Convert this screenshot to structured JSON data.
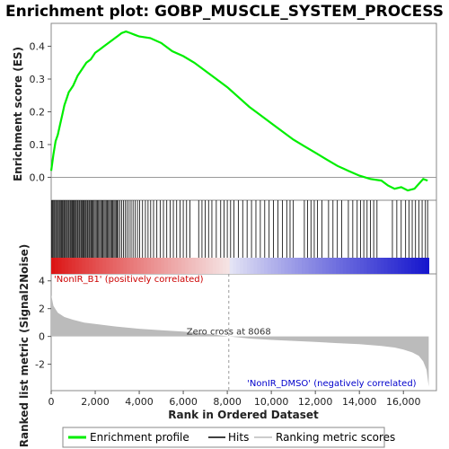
{
  "chart_data": {
    "type": "line",
    "title": "Enrichment plot: GOBP_MUSCLE_SYSTEM_PROCESS",
    "xlabel": "Rank in Ordered Dataset",
    "xlim": [
      0,
      17500
    ],
    "x_ticks": [
      "0",
      "2,000",
      "4,000",
      "6,000",
      "8,000",
      "10,000",
      "12,000",
      "14,000",
      "16,000"
    ],
    "x_tick_values": [
      0,
      2000,
      4000,
      6000,
      8000,
      10000,
      12000,
      14000,
      16000
    ],
    "top_panel": {
      "ylabel": "Enrichment score (ES)",
      "ylim": [
        -0.07,
        0.47
      ],
      "y_ticks": [
        "0.0",
        "0.1",
        "0.2",
        "0.3",
        "0.4"
      ],
      "y_tick_values": [
        0.0,
        0.1,
        0.2,
        0.3,
        0.4
      ],
      "series": [
        {
          "name": "Enrichment profile",
          "color": "#00ee00",
          "x": [
            0,
            100,
            200,
            300,
            400,
            500,
            600,
            700,
            800,
            900,
            1000,
            1200,
            1400,
            1600,
            1800,
            2000,
            2200,
            2400,
            2600,
            2800,
            3000,
            3200,
            3400,
            3600,
            3800,
            4000,
            4500,
            5000,
            5500,
            6000,
            6500,
            7000,
            7500,
            8000,
            8500,
            9000,
            9500,
            10000,
            10500,
            11000,
            11500,
            12000,
            12500,
            13000,
            13500,
            14000,
            14500,
            15000,
            15300,
            15600,
            15900,
            16200,
            16500,
            16700,
            16900,
            17100
          ],
          "y": [
            0.02,
            0.07,
            0.11,
            0.13,
            0.16,
            0.19,
            0.22,
            0.24,
            0.26,
            0.27,
            0.28,
            0.31,
            0.33,
            0.35,
            0.36,
            0.38,
            0.39,
            0.4,
            0.41,
            0.42,
            0.43,
            0.44,
            0.445,
            0.44,
            0.435,
            0.43,
            0.425,
            0.41,
            0.385,
            0.37,
            0.35,
            0.325,
            0.3,
            0.275,
            0.245,
            0.215,
            0.19,
            0.165,
            0.14,
            0.115,
            0.095,
            0.075,
            0.055,
            0.035,
            0.02,
            0.005,
            -0.005,
            -0.01,
            -0.025,
            -0.035,
            -0.03,
            -0.04,
            -0.035,
            -0.02,
            -0.005,
            -0.01
          ]
        }
      ]
    },
    "hits_panel": {
      "series_name": "Hits",
      "description_colors": {
        "hit": "#000000",
        "bar_pos": "#dd0000",
        "bar_neg": "#0000cc"
      },
      "hit_ranks": [
        20,
        60,
        110,
        150,
        200,
        240,
        290,
        330,
        380,
        420,
        470,
        510,
        560,
        600,
        640,
        690,
        730,
        780,
        820,
        870,
        910,
        960,
        1000,
        1040,
        1090,
        1130,
        1180,
        1220,
        1270,
        1310,
        1360,
        1400,
        1450,
        1490,
        1540,
        1580,
        1630,
        1670,
        1720,
        1760,
        1810,
        1850,
        1900,
        1950,
        2000,
        2050,
        2100,
        2150,
        2200,
        2250,
        2300,
        2350,
        2400,
        2450,
        2500,
        2550,
        2600,
        2650,
        2700,
        2750,
        2800,
        2850,
        2900,
        2950,
        3000,
        3050,
        3120,
        3200,
        3280,
        3360,
        3450,
        3540,
        3630,
        3720,
        3820,
        3920,
        4020,
        4150,
        4280,
        4400,
        4520,
        4650,
        4800,
        4950,
        5100,
        5250,
        5400,
        5550,
        5700,
        5850,
        6000,
        6150,
        6300,
        6700,
        6850,
        7000,
        7150,
        7300,
        7500,
        7700,
        7850,
        8000,
        8150,
        8300,
        8500,
        8700,
        8900,
        9100,
        9300,
        9500,
        9700,
        9900,
        10100,
        10300,
        10500,
        10700,
        10850,
        11000,
        11500,
        11650,
        11800,
        11950,
        12100,
        12300,
        12600,
        12800,
        13000,
        13200,
        13500,
        13700,
        13900,
        14050,
        14200,
        14350,
        14500,
        14650,
        14800,
        15500,
        15700,
        15900,
        16100,
        16250,
        16400,
        16550,
        16700,
        16850,
        17000,
        17100
      ]
    },
    "metric_panel": {
      "ylabel": "Ranked list metric (Signal2Noise)",
      "ylim": [
        -3.9,
        4.5
      ],
      "y_ticks": [
        "4",
        "2",
        "0",
        "-2"
      ],
      "y_tick_values": [
        4,
        2,
        0,
        -2
      ],
      "series_name": "Ranking metric scores",
      "x": [
        0,
        100,
        300,
        600,
        1000,
        1500,
        2000,
        3000,
        4000,
        5000,
        6000,
        7000,
        8068,
        9000,
        10000,
        11000,
        12000,
        13000,
        14000,
        15000,
        15600,
        16000,
        16400,
        16700,
        16900,
        17050,
        17150
      ],
      "y": [
        3.0,
        2.2,
        1.7,
        1.4,
        1.2,
        1.0,
        0.9,
        0.7,
        0.55,
        0.45,
        0.35,
        0.2,
        0.0,
        -0.15,
        -0.25,
        -0.32,
        -0.4,
        -0.48,
        -0.56,
        -0.68,
        -0.8,
        -0.95,
        -1.15,
        -1.4,
        -1.8,
        -2.4,
        -3.6
      ],
      "zero_cross_label": "Zero cross at 8068",
      "zero_cross": 8068,
      "pos_label": "'NonIR_B1' (positively correlated)",
      "neg_label": "'NonIR_DMSO' (negatively correlated)"
    },
    "legend": {
      "placement": "bottom",
      "items": [
        {
          "label": "Enrichment profile",
          "color": "#00ee00"
        },
        {
          "label": "Hits",
          "color": "#000000"
        },
        {
          "label": "Ranking metric scores",
          "color": "#bbbbbb"
        }
      ]
    },
    "grid": false
  }
}
